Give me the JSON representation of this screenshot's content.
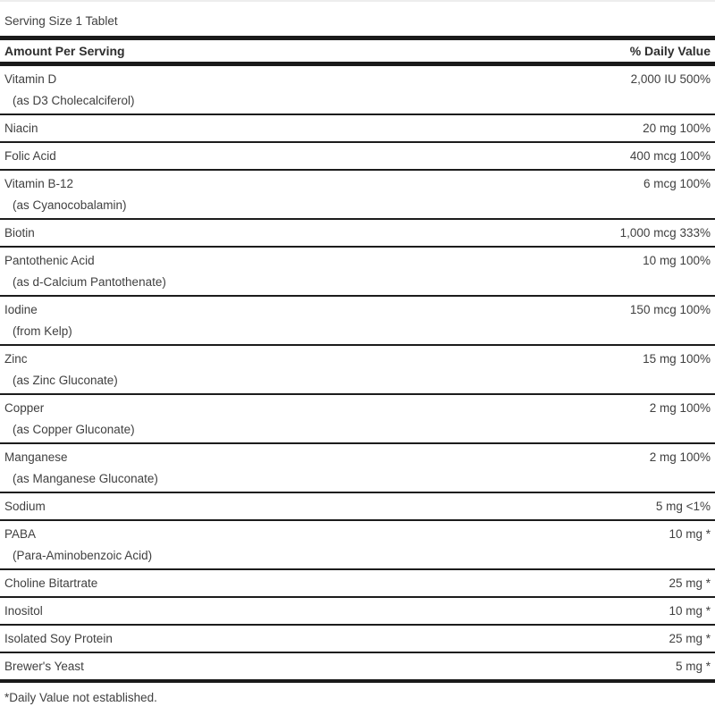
{
  "label": {
    "serving_size": "Serving Size 1 Tablet",
    "header": {
      "amount_label": "Amount Per Serving",
      "dv_label": "% Daily Value"
    },
    "rows": [
      {
        "name": "Vitamin D",
        "sub": "(as D3 Cholecalciferol)",
        "amount": "2,000 IU",
        "dv": "500%"
      },
      {
        "name": "Niacin",
        "amount": "20 mg",
        "dv": "100%"
      },
      {
        "name": "Folic Acid",
        "amount": "400 mcg",
        "dv": "100%"
      },
      {
        "name": "Vitamin B-12",
        "sub": "(as Cyanocobalamin)",
        "amount": "6 mcg",
        "dv": "100%"
      },
      {
        "name": "Biotin",
        "amount": "1,000 mcg",
        "dv": "333%"
      },
      {
        "name": "Pantothenic Acid",
        "sub": "(as d-Calcium Pantothenate)",
        "amount": "10 mg",
        "dv": "100%"
      },
      {
        "name": "Iodine",
        "sub": "(from Kelp)",
        "amount": "150 mcg",
        "dv": "100%"
      },
      {
        "name": "Zinc",
        "sub": "(as Zinc Gluconate)",
        "amount": "15 mg",
        "dv": "100%"
      },
      {
        "name": "Copper",
        "sub": "(as Copper Gluconate)",
        "amount": "2 mg",
        "dv": "100%"
      },
      {
        "name": "Manganese",
        "sub": "(as Manganese Gluconate)",
        "amount": "2 mg",
        "dv": "100%"
      },
      {
        "name": "Sodium",
        "amount": "5 mg",
        "dv": "<1%"
      },
      {
        "name": "PABA",
        "sub": "(Para-Aminobenzoic Acid)",
        "amount": "10 mg",
        "dv": "*"
      },
      {
        "name": "Choline Bitartrate",
        "amount": "25 mg",
        "dv": "*"
      },
      {
        "name": "Inositol",
        "amount": "10 mg",
        "dv": "*"
      },
      {
        "name": "Isolated Soy Protein",
        "amount": "25 mg",
        "dv": "*"
      },
      {
        "name": "Brewer's Yeast",
        "amount": "5 mg",
        "dv": "*"
      }
    ],
    "footnote": "*Daily Value not established."
  },
  "colors": {
    "rule": "#1a1a1a",
    "text": "#3f3f3f"
  }
}
